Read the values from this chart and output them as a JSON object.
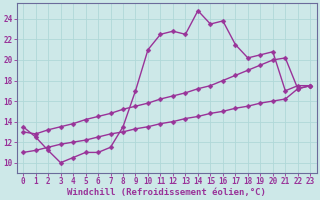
{
  "background_color": "#cde8e8",
  "grid_color": "#b0d8d8",
  "line_color": "#993399",
  "spine_color": "#6b6b9b",
  "xlabel": "Windchill (Refroidissement éolien,°C)",
  "xlim": [
    -0.5,
    23.5
  ],
  "ylim": [
    9.0,
    25.5
  ],
  "yticks": [
    10,
    12,
    14,
    16,
    18,
    20,
    22,
    24
  ],
  "xticks": [
    0,
    1,
    2,
    3,
    4,
    5,
    6,
    7,
    8,
    9,
    10,
    11,
    12,
    13,
    14,
    15,
    16,
    17,
    18,
    19,
    20,
    21,
    22,
    23
  ],
  "series1_x": [
    0,
    1,
    2,
    3,
    4,
    5,
    6,
    7,
    8,
    9,
    10,
    11,
    12,
    13,
    14,
    15,
    16,
    17,
    18,
    19,
    20,
    21,
    22,
    23
  ],
  "series1_y": [
    13.5,
    12.5,
    11.2,
    10.0,
    10.5,
    11.0,
    11.0,
    11.5,
    13.5,
    17.0,
    21.0,
    22.5,
    22.8,
    22.5,
    24.8,
    23.5,
    23.8,
    21.5,
    20.2,
    20.5,
    20.8,
    17.0,
    17.5,
    17.5
  ],
  "series2_x": [
    0,
    1,
    2,
    3,
    4,
    5,
    6,
    7,
    8,
    9,
    10,
    11,
    12,
    13,
    14,
    15,
    16,
    17,
    18,
    19,
    20,
    21,
    22,
    23
  ],
  "series2_y": [
    13.0,
    12.8,
    13.2,
    13.5,
    13.8,
    14.2,
    14.5,
    14.8,
    15.2,
    15.5,
    15.8,
    16.2,
    16.5,
    16.8,
    17.2,
    17.5,
    18.0,
    18.5,
    19.0,
    19.5,
    20.0,
    20.2,
    17.2,
    17.5
  ],
  "series3_x": [
    0,
    1,
    2,
    3,
    4,
    5,
    6,
    7,
    8,
    9,
    10,
    11,
    12,
    13,
    14,
    15,
    16,
    17,
    18,
    19,
    20,
    21,
    22,
    23
  ],
  "series3_y": [
    11.0,
    11.2,
    11.5,
    11.8,
    12.0,
    12.2,
    12.5,
    12.8,
    13.0,
    13.3,
    13.5,
    13.8,
    14.0,
    14.3,
    14.5,
    14.8,
    15.0,
    15.3,
    15.5,
    15.8,
    16.0,
    16.2,
    17.2,
    17.5
  ],
  "marker": "D",
  "markersize": 2.5,
  "linewidth": 1.0,
  "fontsize_label": 6.5,
  "fontsize_tick": 5.5
}
